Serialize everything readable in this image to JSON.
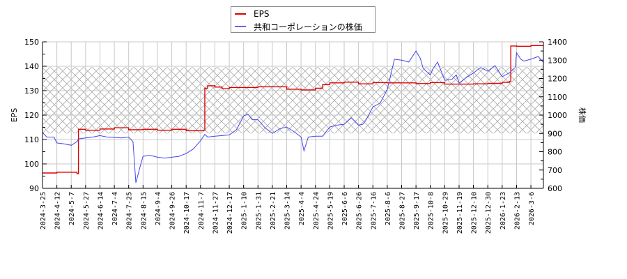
{
  "legend": {
    "items": [
      {
        "label": "EPS",
        "color": "#dd0000"
      },
      {
        "label": "共和コーポレーションの株価",
        "color": "#4444ee"
      }
    ]
  },
  "axes": {
    "left_title": "EPS",
    "right_title": "株価",
    "left_ticks": [
      90,
      100,
      110,
      120,
      130,
      140,
      150
    ],
    "right_ticks": [
      600,
      700,
      800,
      900,
      1000,
      1100,
      1200,
      1300,
      1400
    ]
  },
  "chart_data": {
    "type": "line",
    "title": "",
    "xlabel": "",
    "ylabel": "EPS",
    "y2label": "株価",
    "ylim": [
      90,
      150
    ],
    "y2lim": [
      600,
      1400
    ],
    "grid": true,
    "legend_position": "top-center",
    "shaded_band": {
      "y2_from": 900,
      "y2_to": 1262,
      "style": "crosshatch"
    },
    "x_tick_labels": [
      "2024-3-25",
      "2024-4-12",
      "2024-5-7",
      "2024-5-27",
      "2024-6-14",
      "2024-7-4",
      "2024-7-25",
      "2024-8-15",
      "2024-9-4",
      "2024-9-26",
      "2024-10-17",
      "2024-11-7",
      "2024-11-27",
      "2024-12-17",
      "2025-1-10",
      "2025-1-31",
      "2025-2-21",
      "2025-3-14",
      "2025-4-4",
      "2025-4-24",
      "2025-5-19",
      "2025-6-6",
      "2025-6-26",
      "2025-7-16",
      "2025-8-6",
      "2025-8-27",
      "2025-9-17",
      "2025-10-8",
      "2025-10-29",
      "2025-11-19",
      "2025-12-10",
      "2025-12-30",
      "2026-1-23",
      "2026-2-13",
      "2026-3-6"
    ],
    "series": [
      {
        "name": "EPS",
        "axis": "left",
        "color": "#dd0000",
        "x_index": [
          0,
          0.9,
          1.0,
          1.5,
          2.4,
          2.45,
          2.5,
          3,
          4,
          5,
          6,
          7,
          8,
          9,
          10,
          11.2,
          11.3,
          11.5,
          12,
          12.5,
          13,
          14,
          15,
          16,
          17,
          18,
          19,
          19.5,
          20,
          21,
          22,
          23,
          24,
          25,
          26,
          27,
          28,
          29,
          30,
          31,
          32,
          32.5,
          32.6,
          33,
          34,
          34.9
        ],
        "values": [
          96.3,
          96.3,
          96.6,
          96.6,
          96.0,
          96.0,
          114.2,
          113.8,
          114.3,
          114.8,
          114.0,
          114.2,
          113.8,
          114.2,
          113.6,
          113.8,
          131.0,
          132.0,
          131.5,
          130.8,
          131.3,
          131.3,
          131.6,
          131.6,
          130.6,
          130.3,
          131.0,
          132.5,
          133.2,
          133.5,
          132.8,
          133.3,
          133.2,
          133.2,
          132.9,
          133.3,
          132.7,
          132.7,
          132.8,
          133.0,
          133.4,
          133.8,
          148.3,
          148.2,
          148.5,
          147.6
        ]
      },
      {
        "name": "共和コーポレーションの株価",
        "axis": "right",
        "color": "#4444ee",
        "x_index": [
          0,
          0.3,
          0.8,
          1.0,
          1.5,
          2.0,
          2.4,
          2.5,
          3.0,
          3.5,
          4.0,
          4.5,
          5.0,
          5.5,
          6.0,
          6.3,
          6.5,
          6.8,
          7.0,
          7.5,
          8.0,
          8.5,
          9.0,
          9.5,
          10.0,
          10.5,
          11.0,
          11.3,
          11.5,
          12.0,
          12.5,
          13.0,
          13.5,
          14.0,
          14.3,
          14.6,
          15.0,
          15.5,
          16.0,
          16.5,
          17.0,
          17.5,
          18.0,
          18.2,
          18.5,
          19.0,
          19.5,
          20.0,
          20.5,
          21.0,
          21.5,
          22.0,
          22.3,
          22.5,
          23.0,
          23.5,
          24.0,
          24.5,
          25.0,
          25.5,
          26.0,
          26.3,
          26.5,
          27.0,
          27.2,
          27.5,
          28.0,
          28.5,
          28.8,
          29.0,
          29.5,
          30.0,
          30.5,
          31.0,
          31.5,
          32.0,
          32.5,
          32.9,
          33.0,
          33.3,
          33.5,
          34.0,
          34.5,
          34.9
        ],
        "values": [
          905,
          880,
          880,
          848,
          843,
          835,
          855,
          870,
          875,
          880,
          888,
          880,
          878,
          875,
          880,
          855,
          630,
          720,
          775,
          780,
          770,
          765,
          770,
          775,
          790,
          815,
          860,
          895,
          880,
          885,
          888,
          892,
          920,
          995,
          1005,
          975,
          975,
          930,
          900,
          925,
          935,
          910,
          880,
          805,
          880,
          885,
          885,
          935,
          945,
          950,
          985,
          945,
          950,
          970,
          1045,
          1065,
          1140,
          1305,
          1300,
          1290,
          1350,
          1310,
          1255,
          1220,
          1255,
          1290,
          1190,
          1195,
          1220,
          1175,
          1205,
          1230,
          1260,
          1240,
          1270,
          1210,
          1230,
          1260,
          1340,
          1305,
          1295,
          1305,
          1320,
          1285
        ]
      }
    ]
  }
}
